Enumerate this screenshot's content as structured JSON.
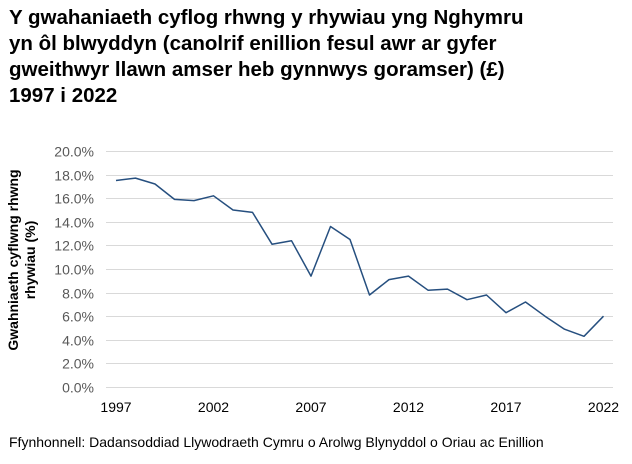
{
  "title_lines": [
    "Y gwahaniaeth cyflog rhwng y rhywiau yng Nghymru",
    "yn ôl blwyddyn (canolrif enillion fesul awr ar gyfer",
    "gweithwyr llawn amser heb gynnwys goramser) (£)",
    "1997 i 2022"
  ],
  "y_axis_label_lines": [
    "Gwahniaeth cyflwng rhwng",
    "rhywiau (%)"
  ],
  "source": "Ffynhonnell: Dadansoddiad Llywodraeth Cymru o Arolwg Blynyddol o Oriau ac Enillion",
  "colors": {
    "line": "#264f7f",
    "grid": "#d9d9d9",
    "tick_text": "#595959"
  },
  "chart_data": {
    "type": "line",
    "title": "Y gwahaniaeth cyflog rhwng y rhywiau yng Nghymru yn ôl blwyddyn (canolrif enillion fesul awr ar gyfer gweithwyr llawn amser heb gynnwys goramser) (£) 1997 i 2022",
    "xlabel": "",
    "ylabel": "Gwahniaeth cyflwng rhwng rhywiau (%)",
    "x": [
      1997,
      1998,
      1999,
      2000,
      2001,
      2002,
      2003,
      2004,
      2005,
      2006,
      2007,
      2008,
      2009,
      2010,
      2011,
      2012,
      2013,
      2014,
      2015,
      2016,
      2017,
      2018,
      2019,
      2020,
      2021,
      2022
    ],
    "series": [
      {
        "name": "Gwahaniaeth cyflog rhwng y rhywiau",
        "values": [
          17.5,
          17.7,
          17.2,
          15.9,
          15.8,
          16.2,
          15.0,
          14.8,
          12.1,
          12.4,
          9.4,
          13.6,
          12.5,
          7.8,
          9.1,
          9.4,
          8.2,
          8.3,
          7.4,
          7.8,
          6.3,
          7.2,
          6.0,
          4.9,
          4.3,
          6.0
        ]
      }
    ],
    "x_tick_labels": [
      "1997",
      "2002",
      "2007",
      "2012",
      "2017",
      "2022"
    ],
    "y_tick_labels": [
      "0.0%",
      "2.0%",
      "4.0%",
      "6.0%",
      "8.0%",
      "10.0%",
      "12.0%",
      "14.0%",
      "16.0%",
      "18.0%",
      "20.0%"
    ],
    "ylim": [
      0,
      20
    ],
    "grid": true,
    "legend": "none",
    "source": "Ffynhonnell: Dadansoddiad Llywodraeth Cymru o Arolwg Blynyddol o Oriau ac Enillion"
  }
}
